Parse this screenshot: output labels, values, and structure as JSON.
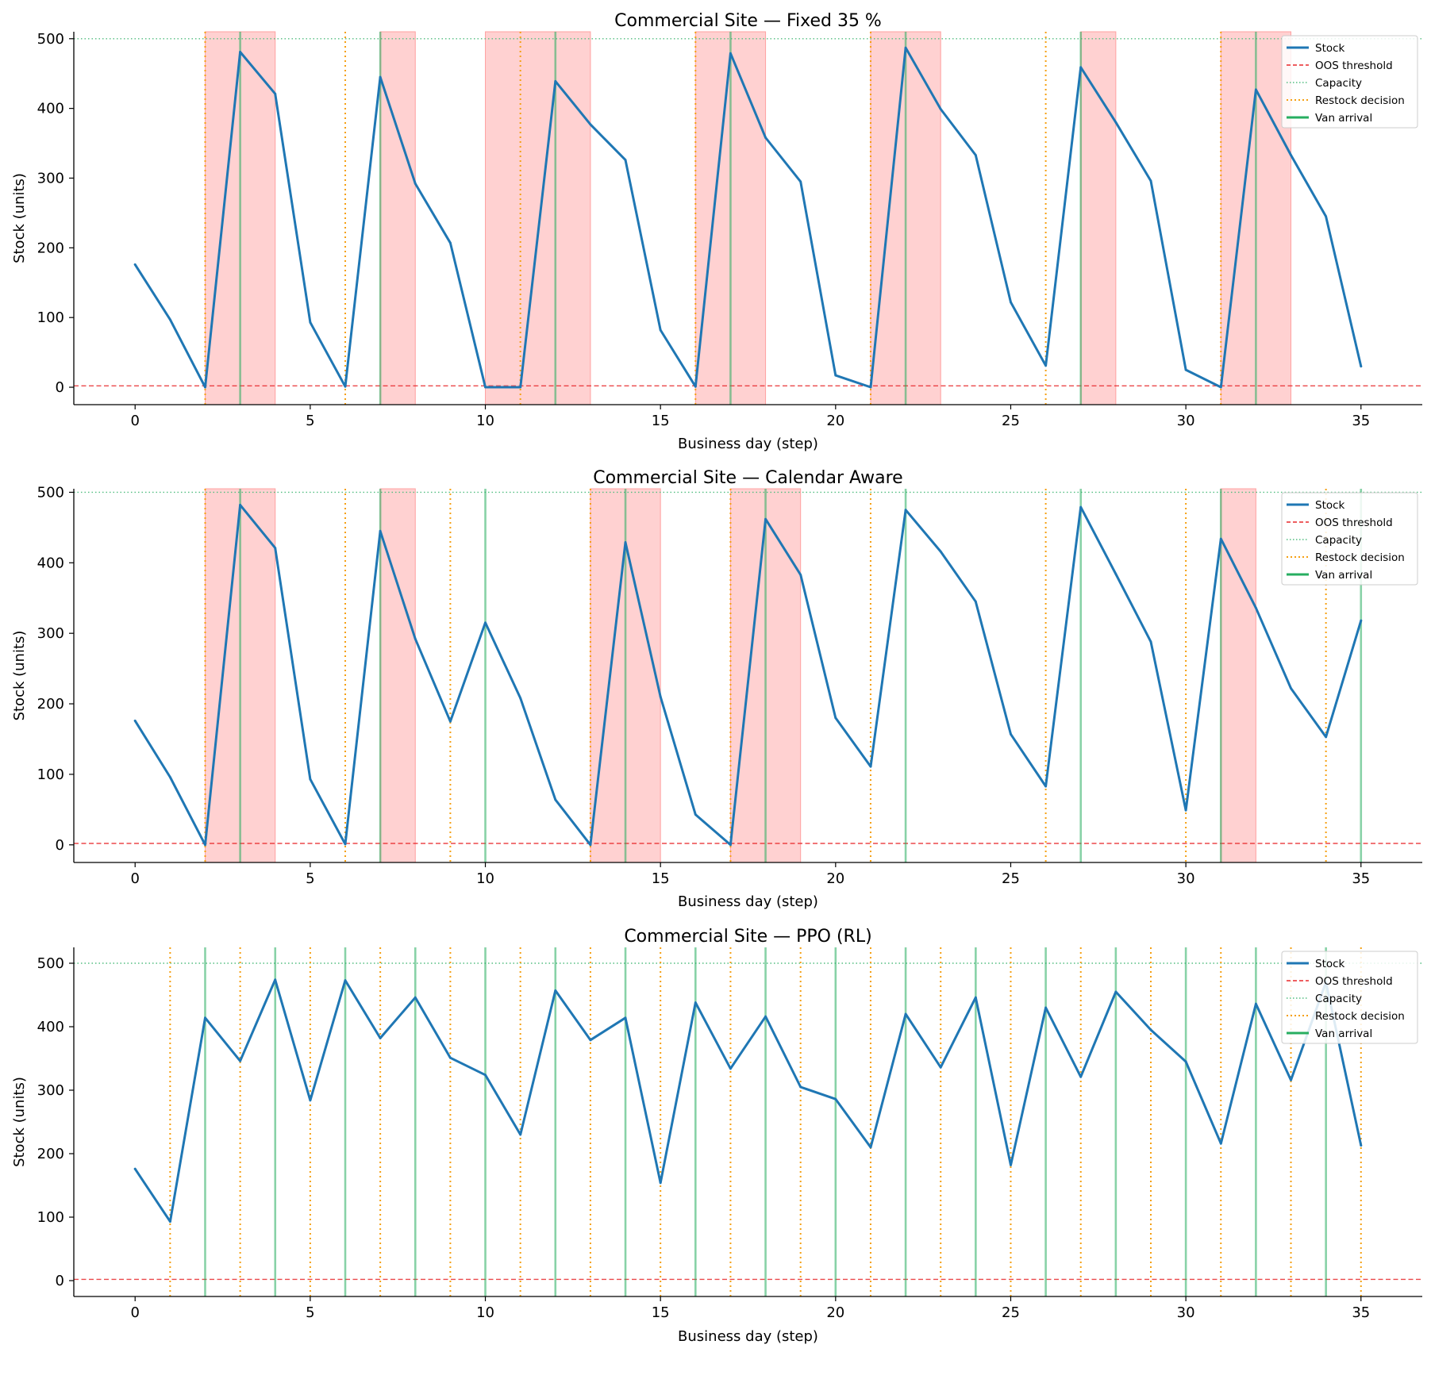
{
  "colors": {
    "stock": "#1f77b4",
    "oos": "#e8282b",
    "capacity": "#52be80",
    "restock": "#f5a012",
    "van": "#27ae60",
    "shade": "#ff9999"
  },
  "chart_data": [
    {
      "type": "line",
      "title": "Commercial Site — Fixed 35 %",
      "xlabel": "Business day (step)",
      "ylabel": "Stock (units)",
      "xlim": [
        -1.75,
        36.75
      ],
      "ylim": [
        -25,
        510
      ],
      "xticks": [
        0,
        5,
        10,
        15,
        20,
        25,
        30,
        35
      ],
      "yticks": [
        0,
        100,
        200,
        300,
        400,
        500
      ],
      "oos_threshold": 2,
      "capacity": 500,
      "legend": [
        "Stock",
        "OOS threshold",
        "Capacity",
        "Restock decision",
        "Van arrival"
      ],
      "legend_position": "top-right",
      "series": [
        {
          "name": "Stock",
          "x": [
            0,
            1,
            2,
            3,
            4,
            5,
            6,
            7,
            8,
            9,
            10,
            11,
            12,
            13,
            14,
            15,
            16,
            17,
            18,
            19,
            20,
            21,
            22,
            23,
            24,
            25,
            26,
            27,
            28,
            29,
            30,
            31,
            32,
            33,
            34,
            35
          ],
          "values": [
            176,
            97,
            0,
            481,
            421,
            93,
            1,
            445,
            292,
            207,
            0,
            0,
            439,
            377,
            326,
            82,
            1,
            479,
            358,
            295,
            17,
            0,
            487,
            399,
            333,
            122,
            31,
            459,
            380,
            296,
            25,
            0,
            427,
            333,
            245,
            30
          ]
        }
      ],
      "restock_decisions": [
        2,
        6,
        11,
        16,
        21,
        26,
        31
      ],
      "van_arrivals": [
        3,
        7,
        12,
        17,
        22,
        27,
        32
      ],
      "stockout_spans": [
        [
          2,
          4
        ],
        [
          7,
          8
        ],
        [
          10,
          13
        ],
        [
          16,
          18
        ],
        [
          21,
          23
        ],
        [
          27,
          28
        ],
        [
          31,
          33
        ]
      ]
    },
    {
      "type": "line",
      "title": "Commercial Site — Calendar Aware",
      "xlabel": "Business day (step)",
      "ylabel": "Stock (units)",
      "xlim": [
        -1.75,
        36.75
      ],
      "ylim": [
        -25,
        505
      ],
      "xticks": [
        0,
        5,
        10,
        15,
        20,
        25,
        30,
        35
      ],
      "yticks": [
        0,
        100,
        200,
        300,
        400,
        500
      ],
      "oos_threshold": 2,
      "capacity": 500,
      "legend": [
        "Stock",
        "OOS threshold",
        "Capacity",
        "Restock decision",
        "Van arrival"
      ],
      "legend_position": "top-right",
      "series": [
        {
          "name": "Stock",
          "x": [
            0,
            1,
            2,
            3,
            4,
            5,
            6,
            7,
            8,
            9,
            10,
            11,
            12,
            13,
            14,
            15,
            16,
            17,
            18,
            19,
            20,
            21,
            22,
            23,
            24,
            25,
            26,
            27,
            28,
            29,
            30,
            31,
            32,
            33,
            34,
            35
          ],
          "values": [
            176,
            96,
            0,
            482,
            421,
            93,
            1,
            445,
            292,
            175,
            315,
            208,
            64,
            0,
            429,
            210,
            43,
            0,
            462,
            383,
            180,
            111,
            475,
            416,
            345,
            157,
            83,
            479,
            384,
            288,
            49,
            434,
            336,
            222,
            153,
            318
          ]
        }
      ],
      "restock_decisions": [
        2,
        6,
        9,
        13,
        17,
        21,
        26,
        30,
        34
      ],
      "van_arrivals": [
        3,
        7,
        10,
        14,
        18,
        22,
        27,
        31,
        35
      ],
      "stockout_spans": [
        [
          2,
          4
        ],
        [
          7,
          8
        ],
        [
          13,
          15
        ],
        [
          17,
          19
        ],
        [
          31,
          32
        ]
      ]
    },
    {
      "type": "line",
      "title": "Commercial Site — PPO (RL)",
      "xlabel": "Business day (step)",
      "ylabel": "Stock (units)",
      "xlim": [
        -1.75,
        36.75
      ],
      "ylim": [
        -25,
        525
      ],
      "xticks": [
        0,
        5,
        10,
        15,
        20,
        25,
        30,
        35
      ],
      "yticks": [
        0,
        100,
        200,
        300,
        400,
        500
      ],
      "oos_threshold": 2,
      "capacity": 500,
      "legend": [
        "Stock",
        "OOS threshold",
        "Capacity",
        "Restock decision",
        "Van arrival"
      ],
      "legend_position": "top-right",
      "series": [
        {
          "name": "Stock",
          "x": [
            0,
            1,
            2,
            3,
            4,
            5,
            6,
            7,
            8,
            9,
            10,
            11,
            12,
            13,
            14,
            15,
            16,
            17,
            18,
            19,
            20,
            21,
            22,
            23,
            24,
            25,
            26,
            27,
            28,
            29,
            30,
            31,
            32,
            33,
            34,
            35
          ],
          "values": [
            176,
            93,
            414,
            346,
            474,
            284,
            473,
            382,
            446,
            351,
            324,
            230,
            457,
            379,
            414,
            154,
            438,
            334,
            416,
            305,
            286,
            210,
            420,
            336,
            446,
            182,
            430,
            321,
            455,
            395,
            345,
            216,
            436,
            316,
            470,
            213
          ]
        }
      ],
      "restock_decisions": [
        1,
        3,
        5,
        7,
        9,
        11,
        13,
        15,
        17,
        19,
        21,
        23,
        25,
        27,
        29,
        31,
        33,
        35
      ],
      "van_arrivals": [
        2,
        4,
        6,
        8,
        10,
        12,
        14,
        16,
        18,
        20,
        22,
        24,
        26,
        28,
        30,
        32,
        34
      ],
      "stockout_spans": []
    }
  ]
}
